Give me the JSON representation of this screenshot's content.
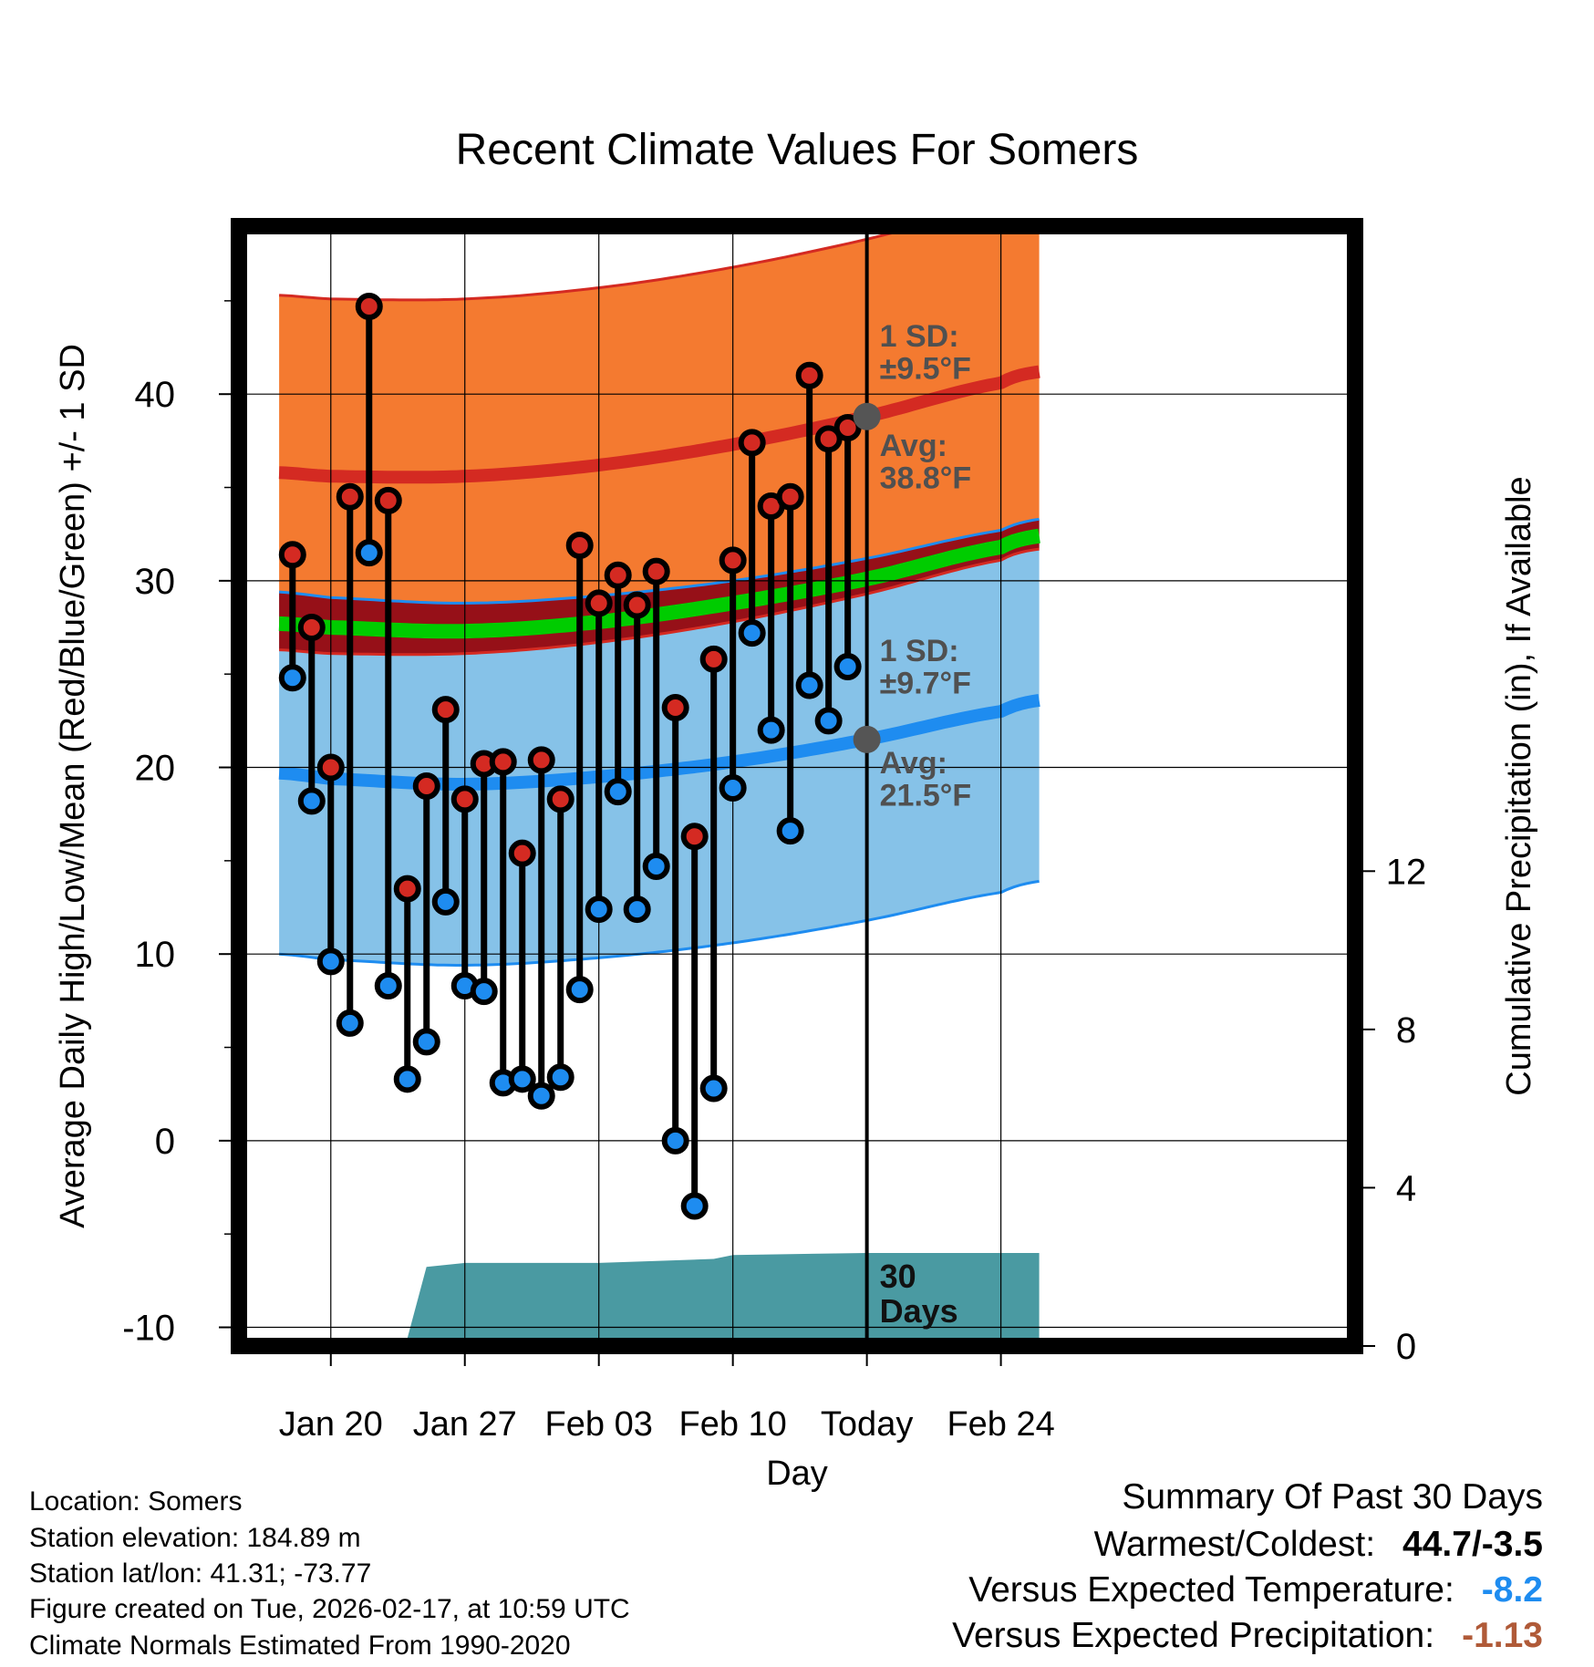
{
  "colors": {
    "high_band": "#f47a30",
    "high_line": "#d42a22",
    "low_band": "#86c2e8",
    "low_line": "#1e8cf0",
    "mean_band": "#961018",
    "mean_line": "#00cc00",
    "precip": "#4a9aa2",
    "high_dot": "#d42a22",
    "low_dot": "#1e8cf0",
    "avg_marker": "#555555",
    "annotation": "#505050",
    "temp_anomaly": "#1e8cf0",
    "precip_anomaly": "#b05a38"
  },
  "chart_data": {
    "type": "line",
    "title": "Recent Climate Values For Somers",
    "xlabel": "Day",
    "ylabel": "Average Daily High/Low/Mean (Red/Blue/Green) +/- 1 SD",
    "y2label": "Cumulative Precipitation (in), If Available",
    "xlim": [
      -4.8,
      53.5
    ],
    "ylim": [
      -11,
      49
    ],
    "y2lim": [
      0,
      28.3
    ],
    "yticks": [
      {
        "v": -10,
        "label": "-10"
      },
      {
        "v": 0,
        "label": "0"
      },
      {
        "v": 10,
        "label": "10"
      },
      {
        "v": 20,
        "label": "20"
      },
      {
        "v": 30,
        "label": "30"
      },
      {
        "v": 40,
        "label": "40"
      }
    ],
    "y2ticks": [
      {
        "v": 0,
        "label": "0"
      },
      {
        "v": 4,
        "label": "4"
      },
      {
        "v": 8,
        "label": "8"
      },
      {
        "v": 12,
        "label": "12"
      }
    ],
    "xticks": [
      {
        "v": 0,
        "label": "Jan 20"
      },
      {
        "v": 7,
        "label": "Jan 27"
      },
      {
        "v": 14,
        "label": "Feb 03"
      },
      {
        "v": 21,
        "label": "Feb 10"
      },
      {
        "v": 28,
        "label": "Today"
      },
      {
        "v": 35,
        "label": "Feb 24"
      }
    ],
    "normals": {
      "x": [
        -2.7,
        0,
        7,
        14,
        21,
        28,
        35,
        37
      ],
      "high_avg": [
        35.8,
        35.6,
        35.6,
        36.2,
        37.3,
        38.8,
        40.6,
        41.2
      ],
      "high_sd": 9.5,
      "low_avg": [
        19.7,
        19.4,
        19.1,
        19.5,
        20.3,
        21.5,
        23.0,
        23.6
      ],
      "low_sd": 9.7,
      "mean_avg": [
        27.7,
        27.5,
        27.3,
        27.8,
        28.8,
        30.1,
        31.8,
        32.4
      ]
    },
    "observations": {
      "x": [
        -2,
        -1,
        0,
        1,
        2,
        3,
        4,
        5,
        6,
        7,
        8,
        9,
        10,
        11,
        12,
        13,
        14,
        15,
        16,
        17,
        18,
        19,
        20,
        21,
        22,
        23,
        24,
        25,
        26,
        27
      ],
      "high": [
        31.4,
        27.5,
        20.0,
        34.5,
        44.7,
        34.3,
        13.5,
        19.0,
        23.1,
        18.3,
        20.2,
        20.3,
        15.4,
        20.4,
        18.3,
        31.9,
        28.8,
        30.3,
        28.7,
        30.5,
        23.2,
        16.3,
        25.8,
        31.1,
        37.4,
        34.0,
        34.5,
        41.0,
        37.6,
        38.2
      ],
      "low": [
        24.8,
        18.2,
        9.6,
        6.3,
        31.5,
        8.3,
        3.3,
        5.3,
        12.8,
        8.3,
        8.0,
        3.1,
        3.3,
        2.4,
        3.4,
        8.1,
        12.4,
        18.7,
        12.4,
        14.7,
        0.0,
        -3.5,
        2.8,
        18.9,
        27.2,
        22.0,
        16.6,
        24.4,
        22.5,
        25.4
      ]
    },
    "precip": {
      "x": [
        -2.7,
        -2,
        0,
        4,
        5,
        7,
        14,
        17,
        20,
        21,
        28,
        35,
        37
      ],
      "cumulative": [
        0.0,
        0.2,
        0.2,
        0.2,
        2.0,
        2.1,
        2.1,
        2.15,
        2.2,
        2.3,
        2.35,
        2.35,
        2.35
      ]
    },
    "annotations": {
      "high_sd_label": [
        "1 SD:",
        "±9.5°F"
      ],
      "high_avg_label": [
        "Avg:",
        "38.8°F"
      ],
      "low_sd_label": [
        "1 SD:",
        "±9.7°F"
      ],
      "low_avg_label": [
        "Avg:",
        "21.5°F"
      ],
      "precip_label": [
        "30",
        "Days"
      ]
    }
  },
  "info": {
    "location": "Location: Somers",
    "elevation": "Station elevation: 184.89 m",
    "latlon": "Station lat/lon: 41.31; -73.77",
    "created": "Figure created on Tue, 2026-02-17, at 10:59 UTC",
    "normals": "Climate Normals Estimated From 1990-2020"
  },
  "summary": {
    "title": "Summary Of Past 30 Days",
    "warm_cold_label": "Warmest/Coldest:",
    "warm_cold_value": "44.7/-3.5",
    "temp_label": "Versus Expected Temperature:",
    "temp_value": "-8.2",
    "precip_label": "Versus Expected Precipitation:",
    "precip_value": "-1.13"
  }
}
